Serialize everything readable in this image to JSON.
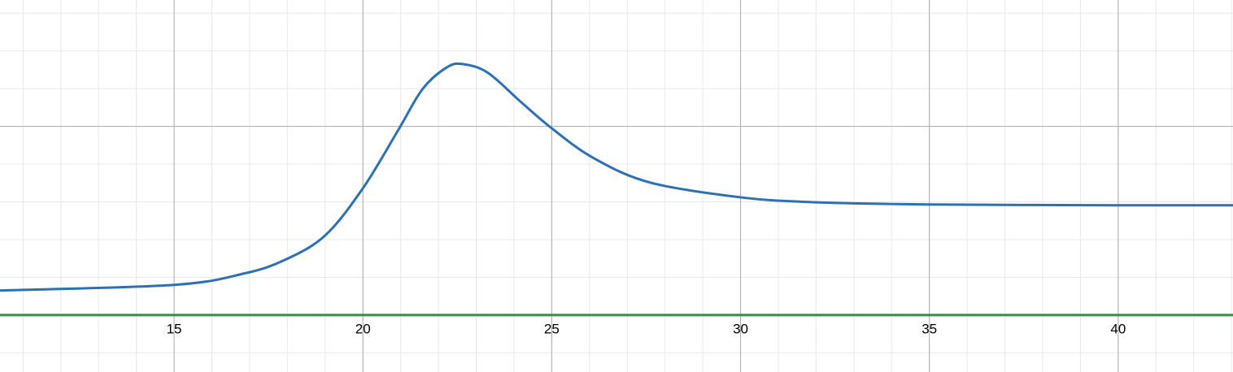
{
  "chart_data": {
    "type": "line",
    "xlim": [
      10.39,
      43.04
    ],
    "ylim": [
      -1.51,
      8.35
    ],
    "xticks": [
      15,
      20,
      25,
      30,
      35,
      40
    ],
    "grid": true,
    "series": [
      {
        "color": "#2d70b3",
        "x": [
          10.39,
          15,
          16.85,
          17.93,
          19.0,
          20,
          20.94,
          21.58,
          22.23,
          22.66,
          23.31,
          24.17,
          25,
          26.11,
          27.61,
          30,
          31.93,
          35,
          40,
          43.04
        ],
        "values": [
          0.65,
          0.8,
          1.1,
          1.46,
          2.11,
          3.36,
          4.91,
          5.99,
          6.57,
          6.65,
          6.42,
          5.66,
          4.95,
          4.16,
          3.51,
          3.12,
          2.99,
          2.93,
          2.91,
          2.91
        ]
      },
      {
        "color": "#388c46",
        "x": [
          10.39,
          43.04
        ],
        "values": [
          0,
          0
        ]
      }
    ]
  }
}
